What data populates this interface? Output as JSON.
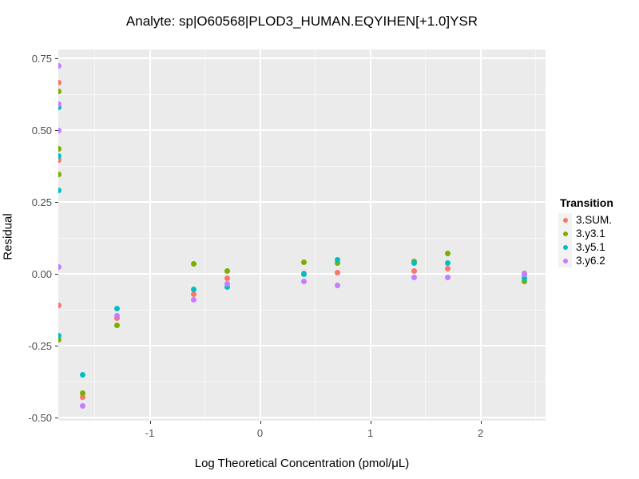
{
  "title": "Analyte: sp|O60568|PLOD3_HUMAN.EQYIHEN[+1.0]YSR",
  "chart_data": {
    "type": "scatter",
    "title": "Analyte: sp|O60568|PLOD3_HUMAN.EQYIHEN[+1.0]YSR",
    "xlabel": "Log Theoretical Concentration (pmol/μL)",
    "ylabel": "Residual",
    "xlim": [
      -1.83,
      2.59
    ],
    "ylim": [
      -0.511,
      0.781
    ],
    "x_ticks": [
      -1,
      0,
      1,
      2
    ],
    "x_tick_labels": [
      "-1",
      "0",
      "1",
      "2"
    ],
    "y_ticks": [
      0.75,
      0.5,
      0.25,
      0.0,
      -0.25,
      -0.5
    ],
    "y_tick_labels": [
      "0.75",
      "0.50",
      "0.25",
      "0.00",
      "-0.25",
      "-0.50"
    ],
    "x_minor_ticks": [
      -1.5,
      -0.5,
      0.5,
      1.5,
      2.5
    ],
    "y_minor_ticks": [
      0.625,
      0.375,
      0.125,
      -0.125,
      -0.375
    ],
    "grid": true,
    "panel_background": "#EBEBEB",
    "gridline_color": "#FFFFFF",
    "legend_title": "Transition",
    "legend_position": "right",
    "legend_key_fill": "#F2F2F2",
    "series": [
      {
        "name": "3.SUM.",
        "color": "#F8766D",
        "points": [
          [
            -1.83,
            0.665
          ],
          [
            -1.83,
            0.395
          ],
          [
            -1.83,
            -0.11
          ],
          [
            -1.61,
            -0.43
          ],
          [
            -1.3,
            -0.155
          ],
          [
            -0.6,
            -0.07
          ],
          [
            -0.3,
            -0.015
          ],
          [
            0.4,
            0.003
          ],
          [
            0.7,
            0.005
          ],
          [
            1.4,
            0.01
          ],
          [
            1.7,
            0.017
          ],
          [
            2.4,
            0.002
          ]
        ]
      },
      {
        "name": "3.y3.1",
        "color": "#7CAE00",
        "points": [
          [
            -1.83,
            0.635
          ],
          [
            -1.83,
            0.435
          ],
          [
            -1.83,
            0.345
          ],
          [
            -1.83,
            -0.23
          ],
          [
            -1.61,
            -0.415
          ],
          [
            -1.3,
            -0.18
          ],
          [
            -0.6,
            0.035
          ],
          [
            -0.3,
            0.01
          ],
          [
            0.4,
            0.04
          ],
          [
            0.7,
            0.037
          ],
          [
            1.4,
            0.042
          ],
          [
            1.7,
            0.07
          ],
          [
            2.4,
            -0.026
          ]
        ]
      },
      {
        "name": "3.y5.1",
        "color": "#00BFC4",
        "points": [
          [
            -1.83,
            0.58
          ],
          [
            -1.83,
            0.41
          ],
          [
            -1.83,
            0.29
          ],
          [
            -1.83,
            -0.215
          ],
          [
            -1.61,
            -0.35
          ],
          [
            -1.3,
            -0.12
          ],
          [
            -0.6,
            -0.055
          ],
          [
            -0.3,
            -0.045
          ],
          [
            0.4,
            0.0
          ],
          [
            0.7,
            0.05
          ],
          [
            1.4,
            0.037
          ],
          [
            1.7,
            0.037
          ],
          [
            2.4,
            -0.015
          ]
        ]
      },
      {
        "name": "3.y6.2",
        "color": "#C77CFF",
        "points": [
          [
            -1.83,
            0.725
          ],
          [
            -1.83,
            0.59
          ],
          [
            -1.83,
            0.5
          ],
          [
            -1.83,
            0.025
          ],
          [
            -1.61,
            -0.46
          ],
          [
            -1.3,
            -0.145
          ],
          [
            -0.6,
            -0.09
          ],
          [
            -0.3,
            -0.035
          ],
          [
            0.4,
            -0.025
          ],
          [
            0.7,
            -0.04
          ],
          [
            1.4,
            -0.012
          ],
          [
            1.7,
            -0.012
          ],
          [
            2.4,
            0.0
          ]
        ]
      }
    ]
  }
}
